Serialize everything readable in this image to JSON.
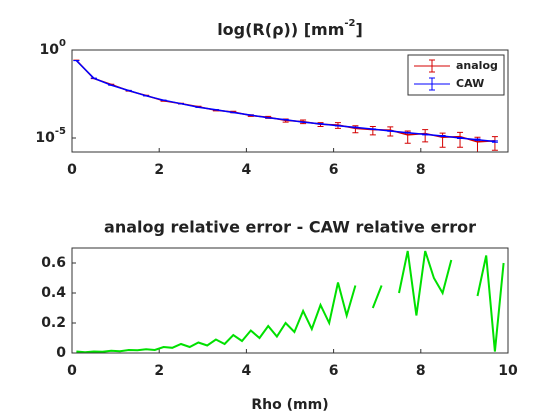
{
  "chart_data": [
    {
      "type": "errorbar",
      "title": "log(R(ρ)) [mm^-2]",
      "log_y": true,
      "x": [
        0.1,
        0.5,
        0.9,
        1.3,
        1.7,
        2.1,
        2.5,
        2.9,
        3.3,
        3.7,
        4.1,
        4.5,
        4.9,
        5.3,
        5.7,
        6.1,
        6.5,
        6.9,
        7.3,
        7.7,
        8.1,
        8.5,
        8.9,
        9.3,
        9.7
      ],
      "series": [
        {
          "name": "analog",
          "color": "#d40000",
          "values": [
            0.26,
            0.024,
            0.011,
            0.0048,
            0.0026,
            0.0013,
            0.0009,
            0.0006,
            0.00038,
            0.0003,
            0.00019,
            0.00015,
            0.0001,
            8.5e-05,
            6e-05,
            5.5e-05,
            3.5e-05,
            3e-05,
            2.8e-05,
            1.5e-05,
            1.8e-05,
            1.1e-05,
            1.2e-05,
            6e-06,
            7e-06
          ],
          "errors": [
            0.005,
            0.0005,
            0.0003,
            0.0002,
            0.0001,
            7e-05,
            5e-05,
            4e-05,
            3e-05,
            3e-05,
            2e-05,
            2e-05,
            2e-05,
            2e-05,
            1.5e-05,
            2e-05,
            1.5e-05,
            1.5e-05,
            1.5e-05,
            1e-05,
            1.2e-05,
            8e-06,
            9e-06,
            5e-06,
            5e-06
          ]
        },
        {
          "name": "CAW",
          "color": "#0000ff",
          "values": [
            0.25,
            0.025,
            0.01,
            0.005,
            0.0025,
            0.0014,
            0.00089,
            0.00056,
            0.0004,
            0.00028,
            0.0002,
            0.00014,
            0.00011,
            8e-05,
            6.3e-05,
            5e-05,
            4e-05,
            3.2e-05,
            2.5e-05,
            2e-05,
            1.6e-05,
            1.3e-05,
            1e-05,
            8e-06,
            6.3e-06
          ],
          "errors": [
            0.002,
            0.0002,
            0.0001,
            5e-05,
            3e-05,
            2e-05,
            1e-05,
            8e-06,
            6e-06,
            5e-06,
            4e-06,
            3e-06,
            3e-06,
            2e-06,
            2e-06,
            2e-06,
            1.5e-06,
            1.2e-06,
            1e-06,
            1e-06,
            9e-07,
            8e-07,
            7e-07,
            7e-07,
            6e-07
          ]
        }
      ],
      "xlim": [
        0,
        10
      ],
      "xticks": [
        0,
        2,
        4,
        6,
        8
      ],
      "ylim": [
        1.6e-06,
        1
      ],
      "yticks": [
        {
          "value": 1,
          "label": "10^0"
        },
        {
          "value": 1e-05,
          "label": "10^-5"
        }
      ],
      "legend": "upper right"
    },
    {
      "type": "line",
      "title": "analog relative error - CAW relative error",
      "xlabel": "Rho (mm)",
      "x": [
        0.1,
        0.3,
        0.5,
        0.7,
        0.9,
        1.1,
        1.3,
        1.5,
        1.7,
        1.9,
        2.1,
        2.3,
        2.5,
        2.7,
        2.9,
        3.1,
        3.3,
        3.5,
        3.7,
        3.9,
        4.1,
        4.3,
        4.5,
        4.7,
        4.9,
        5.1,
        5.3,
        5.5,
        5.7,
        5.9,
        6.1,
        6.3,
        6.5,
        6.7,
        6.9,
        7.1,
        7.3,
        7.5,
        7.7,
        7.9,
        8.1,
        8.3,
        8.5,
        8.7,
        8.9,
        9.1,
        9.3,
        9.5,
        9.7,
        9.9
      ],
      "series": [
        {
          "color": "#00e000",
          "values": [
            0.01,
            0.005,
            0.01,
            0.008,
            0.015,
            0.012,
            0.02,
            0.018,
            0.025,
            0.02,
            0.04,
            0.035,
            0.06,
            0.04,
            0.07,
            0.05,
            0.09,
            0.06,
            0.12,
            0.08,
            0.15,
            0.1,
            0.18,
            0.11,
            0.2,
            0.14,
            0.28,
            0.16,
            0.32,
            0.2,
            0.47,
            0.25,
            0.45,
            null,
            0.3,
            0.45,
            null,
            0.4,
            0.68,
            0.25,
            0.68,
            0.5,
            0.4,
            0.62,
            null,
            null,
            0.38,
            0.65,
            0.01,
            0.6
          ]
        }
      ],
      "xlim": [
        0,
        10
      ],
      "xticks": [
        0,
        2,
        4,
        6,
        8,
        10
      ],
      "ylim": [
        0,
        0.7
      ],
      "yticks": [
        0,
        0.2,
        0.4,
        0.6
      ]
    }
  ]
}
